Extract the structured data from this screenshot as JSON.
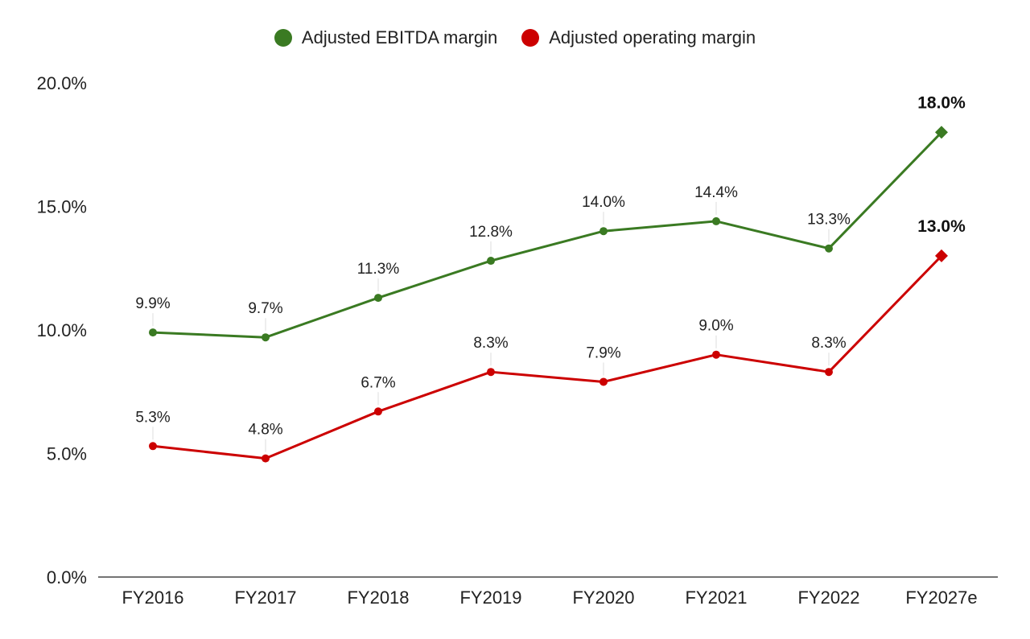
{
  "chart_data": {
    "type": "line",
    "title": "",
    "xlabel": "",
    "ylabel": "",
    "categories": [
      "FY2016",
      "FY2017",
      "FY2018",
      "FY2019",
      "FY2020",
      "FY2021",
      "FY2022",
      "FY2027e"
    ],
    "ylim": [
      0,
      20
    ],
    "yticks": [
      0,
      5,
      10,
      15,
      20
    ],
    "ytick_labels": [
      "0.0%",
      "5.0%",
      "10.0%",
      "15.0%",
      "20.0%"
    ],
    "legend_position": "top-center",
    "series": [
      {
        "name": "Adjusted EBITDA margin",
        "color": "#3a7a22",
        "values": [
          9.9,
          9.7,
          11.3,
          12.8,
          14.0,
          14.4,
          13.3,
          18.0
        ],
        "labels": [
          "9.9%",
          "9.7%",
          "11.3%",
          "12.8%",
          "14.0%",
          "14.4%",
          "13.3%",
          "18.0%"
        ]
      },
      {
        "name": "Adjusted operating margin",
        "color": "#cc0000",
        "values": [
          5.3,
          4.8,
          6.7,
          8.3,
          7.9,
          9.0,
          8.3,
          13.0
        ],
        "labels": [
          "5.3%",
          "4.8%",
          "6.7%",
          "8.3%",
          "7.9%",
          "9.0%",
          "8.3%",
          "13.0%"
        ]
      }
    ],
    "estimate_index": 7
  }
}
